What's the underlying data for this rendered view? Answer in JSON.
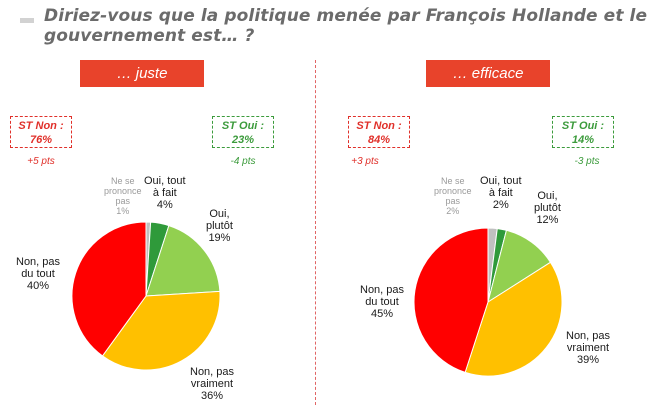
{
  "title": "Diriez-vous que la politique menée par François Hollande et le gouvernement est… ?",
  "chart_data": [
    {
      "type": "pie",
      "banner": "… juste",
      "st_non": {
        "label": "ST Non :",
        "value": "76%",
        "delta": "+5 pts"
      },
      "st_oui": {
        "label": "ST Oui :",
        "value": "23%",
        "delta": "-4 pts"
      },
      "slices": [
        {
          "label": [
            "Ne se",
            "prononce",
            "pas"
          ],
          "value": 1,
          "pct": "1%",
          "color": "#c0c0c0"
        },
        {
          "label": [
            "Oui, tout",
            "à fait"
          ],
          "value": 4,
          "pct": "4%",
          "color": "#2f9a3a"
        },
        {
          "label": [
            "Oui,",
            "plutôt"
          ],
          "value": 19,
          "pct": "19%",
          "color": "#92d050"
        },
        {
          "label": [
            "Non, pas",
            "vraiment"
          ],
          "value": 36,
          "pct": "36%",
          "color": "#ffc000"
        },
        {
          "label": [
            "Non, pas",
            "du tout"
          ],
          "value": 40,
          "pct": "40%",
          "color": "#ff0000"
        }
      ]
    },
    {
      "type": "pie",
      "banner": "… efficace",
      "st_non": {
        "label": "ST Non :",
        "value": "84%",
        "delta": "+3 pts"
      },
      "st_oui": {
        "label": "ST Oui :",
        "value": "14%",
        "delta": "-3 pts"
      },
      "slices": [
        {
          "label": [
            "Ne se",
            "prononce",
            "pas"
          ],
          "value": 2,
          "pct": "2%",
          "color": "#c0c0c0"
        },
        {
          "label": [
            "Oui, tout",
            "à fait"
          ],
          "value": 2,
          "pct": "2%",
          "color": "#2f9a3a"
        },
        {
          "label": [
            "Oui,",
            "plutôt"
          ],
          "value": 12,
          "pct": "12%",
          "color": "#92d050"
        },
        {
          "label": [
            "Non, pas",
            "vraiment"
          ],
          "value": 39,
          "pct": "39%",
          "color": "#ffc000"
        },
        {
          "label": [
            "Non, pas",
            "du tout"
          ],
          "value": 45,
          "pct": "45%",
          "color": "#ff0000"
        }
      ]
    }
  ]
}
